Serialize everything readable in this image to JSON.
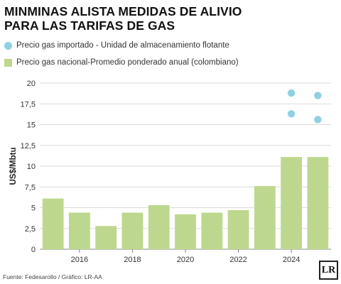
{
  "title_line1": "MINMINAS ALISTA MEDIDAS DE ALIVIO",
  "title_line2": "PARA LAS TARIFAS DE GAS",
  "legend": [
    {
      "label": "Precio gas importado - Unidad  de almacenamiento flotante",
      "color": "#8fd0e2",
      "shape": "circle"
    },
    {
      "label": "Precio gas nacional-Promedio ponderado anual (colombiano)",
      "color": "#bdd88e",
      "shape": "square"
    }
  ],
  "source": "Fuente: Fedesarollo / Gráfico: LR-AA",
  "logo": "LR",
  "chart_data": {
    "type": "bar",
    "ylabel": "US$/Mbtu",
    "ylim": [
      0,
      20
    ],
    "yticks": [
      "0",
      "2,5",
      "5",
      "7,5",
      "10",
      "12,5",
      "15",
      "17,5",
      "20"
    ],
    "ytick_values": [
      0,
      2.5,
      5,
      7.5,
      10,
      12.5,
      15,
      17.5,
      20
    ],
    "xticks": [
      "2016",
      "2018",
      "2020",
      "2022",
      "2024"
    ],
    "xtick_years": [
      2016,
      2018,
      2020,
      2022,
      2024
    ],
    "grid": "horizontal",
    "series": [
      {
        "type": "bar",
        "color": "#bdd88e",
        "x": [
          2015,
          2016,
          2017,
          2018,
          2019,
          2020,
          2021,
          2022,
          2023,
          2024,
          2025
        ],
        "values": [
          6.1,
          4.4,
          2.8,
          4.4,
          5.3,
          4.2,
          4.4,
          4.7,
          7.6,
          11.1,
          11.1
        ]
      },
      {
        "type": "scatter",
        "color": "#8fd0e2",
        "points": [
          {
            "x": 2024,
            "y": 18.8
          },
          {
            "x": 2024,
            "y": 16.3
          },
          {
            "x": 2025,
            "y": 18.5
          },
          {
            "x": 2025,
            "y": 15.6
          }
        ]
      }
    ]
  }
}
